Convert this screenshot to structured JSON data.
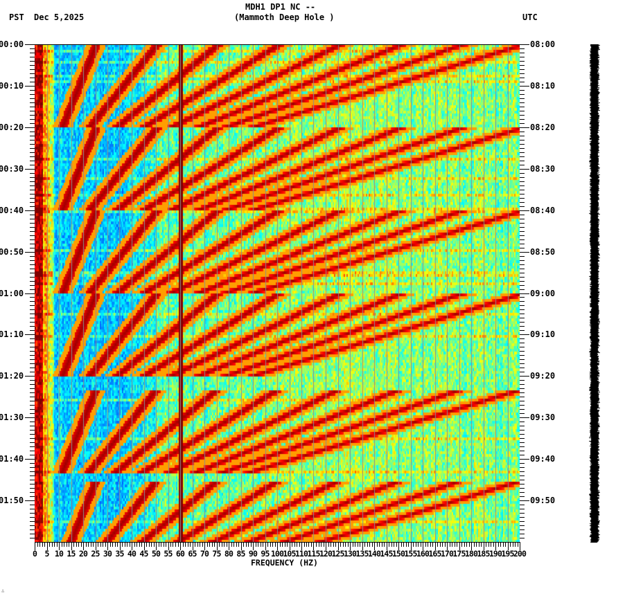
{
  "header": {
    "title_line1": "MDH1 DP1 NC --",
    "title_line2": "(Mammoth Deep Hole )",
    "left_timezone": "PST",
    "date": "Dec 5,2025",
    "right_timezone": "UTC"
  },
  "corner_mark": "∴",
  "colors": {
    "background": "#ffffff",
    "axis": "#000000",
    "grid": "#8c8c8c",
    "colormap": [
      "#0000a0",
      "#0050ff",
      "#00a8ff",
      "#00ffff",
      "#80ff80",
      "#ffff00",
      "#ff8000",
      "#ff0000",
      "#800000"
    ]
  },
  "chart_data": {
    "type": "heatmap",
    "title": "MDH1 DP1 NC -- (Mammoth Deep Hole )",
    "subtitle": "Dec 5,2025",
    "xlabel": "FREQUENCY (HZ)",
    "ylabel_left": "PST",
    "ylabel_right": "UTC",
    "xlim": [
      0,
      200
    ],
    "x_ticks": [
      0,
      5,
      10,
      15,
      20,
      25,
      30,
      35,
      40,
      45,
      50,
      55,
      60,
      65,
      70,
      75,
      80,
      85,
      90,
      95,
      100,
      105,
      110,
      115,
      120,
      125,
      130,
      135,
      140,
      145,
      150,
      155,
      160,
      165,
      170,
      175,
      180,
      185,
      190,
      195,
      200
    ],
    "x_minor_tick_step": 1,
    "grid_x_step": 5,
    "y_range_minutes": [
      0,
      120
    ],
    "y_ticks_left": [
      "00:00",
      "00:10",
      "00:20",
      "00:30",
      "00:40",
      "00:50",
      "01:00",
      "01:10",
      "01:20",
      "01:30",
      "01:40",
      "01:50"
    ],
    "y_ticks_right": [
      "08:00",
      "08:10",
      "08:20",
      "08:30",
      "08:40",
      "08:50",
      "09:00",
      "09:10",
      "09:20",
      "09:30",
      "09:40",
      "09:50"
    ],
    "y_major_tick_step_min": 10,
    "y_minor_tick_step_min": 1,
    "features": {
      "power_line_hz": 60,
      "low_freq_high_energy_hz": [
        0,
        8
      ],
      "chirp_sweep_start_minutes": [
        0,
        20,
        40,
        60,
        83,
        105
      ],
      "chirp_sweep_duration_minutes": 20,
      "chirp_harmonics": 8,
      "background_low_band": "blue (quiet) 15-50 Hz",
      "background_high_band": "cyan/green/yellow 60-200 Hz"
    }
  },
  "seismogram": {
    "label": "trace",
    "color": "#000000"
  }
}
